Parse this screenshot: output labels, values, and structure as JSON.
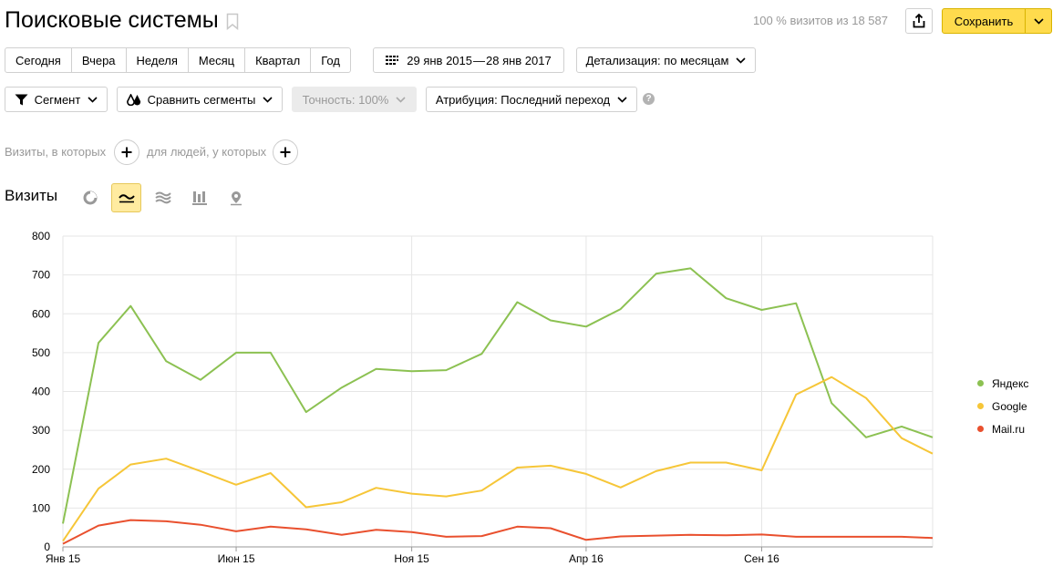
{
  "header": {
    "title": "Поисковые системы",
    "visits_summary": "100 % визитов из 18 587",
    "save_label": "Сохранить"
  },
  "periods": [
    "Сегодня",
    "Вчера",
    "Неделя",
    "Месяц",
    "Квартал",
    "Год"
  ],
  "date_range": {
    "start": "29 янв 2015",
    "separator": "—",
    "end": "28 янв 2017"
  },
  "detail_label": "Детализация: по месяцам",
  "filters": {
    "segment_label": "Сегмент",
    "compare_label": "Сравнить сегменты",
    "accuracy_label": "Точность: 100%",
    "attribution_label": "Атрибуция: Последний переход",
    "help": "?"
  },
  "segment_builder": {
    "visits_text": "Визиты, в которых",
    "people_text": "для людей, у которых"
  },
  "chart_section": {
    "title": "Визиты",
    "chart_types": [
      "pie-chart-icon",
      "line-chart-icon",
      "area-chart-icon",
      "bar-chart-icon",
      "map-icon"
    ],
    "active_type": "line-chart-icon"
  },
  "chart_data": {
    "type": "line",
    "x": [
      "2015-01",
      "2015-02",
      "2015-03",
      "2015-04",
      "2015-05",
      "2015-06",
      "2015-07",
      "2015-08",
      "2015-09",
      "2015-10",
      "2015-11",
      "2015-12",
      "2016-01",
      "2016-02",
      "2016-03",
      "2016-04",
      "2016-05",
      "2016-06",
      "2016-07",
      "2016-08",
      "2016-09",
      "2016-10",
      "2016-11",
      "2016-12",
      "2017-01",
      "2017-01-28"
    ],
    "x_ticks": [
      "Янв 15",
      "Июн 15",
      "Ноя 15",
      "Апр 16",
      "Сен 16"
    ],
    "ylim": [
      0,
      800
    ],
    "yticks": [
      0,
      100,
      200,
      300,
      400,
      500,
      600,
      700,
      800
    ],
    "grid": true,
    "legend_position": "right",
    "series": [
      {
        "name": "Яндекс",
        "color": "#8cc152",
        "values": [
          60,
          525,
          620,
          478,
          430,
          500,
          500,
          347,
          410,
          458,
          452,
          455,
          497,
          630,
          583,
          567,
          612,
          703,
          717,
          640,
          610,
          627,
          370,
          282,
          310,
          282
        ]
      },
      {
        "name": "Google",
        "color": "#f6c638",
        "values": [
          15,
          150,
          212,
          227,
          195,
          160,
          190,
          102,
          115,
          152,
          137,
          130,
          145,
          204,
          209,
          188,
          153,
          195,
          217,
          217,
          197,
          392,
          437,
          383,
          280,
          240
        ]
      },
      {
        "name": "Mail.ru",
        "color": "#e9502e",
        "values": [
          8,
          55,
          69,
          66,
          57,
          40,
          52,
          45,
          31,
          44,
          38,
          26,
          28,
          52,
          48,
          18,
          27,
          29,
          31,
          30,
          32,
          26,
          26,
          26,
          26,
          23
        ]
      }
    ]
  }
}
